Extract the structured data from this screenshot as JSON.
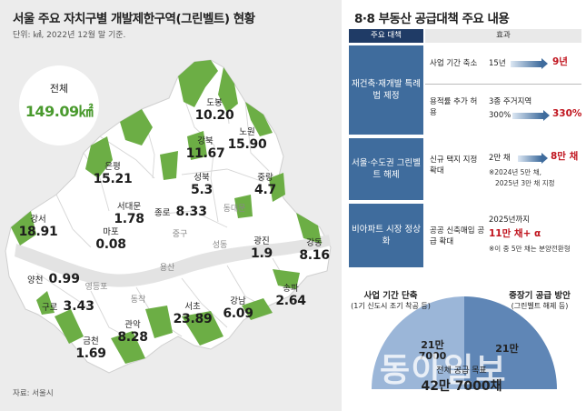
{
  "left": {
    "title": "서울 주요 자치구별 개발제한구역(그린벨트) 현황",
    "unit": "단위: ㎢, 2022년 12월 말 기준.",
    "source": "자료: 서울시",
    "total": {
      "label": "전체",
      "value": "149.09㎢"
    },
    "districts": [
      {
        "name": "도봉",
        "value": "10.20"
      },
      {
        "name": "노원",
        "value": "15.90"
      },
      {
        "name": "강북",
        "value": "11.67"
      },
      {
        "name": "은평",
        "value": "15.21"
      },
      {
        "name": "성북",
        "value": "5.3"
      },
      {
        "name": "중랑",
        "value": "4.7"
      },
      {
        "name": "서대문",
        "value": "1.78"
      },
      {
        "name": "종로",
        "value": "8.33"
      },
      {
        "name": "강서",
        "value": "18.91"
      },
      {
        "name": "마포",
        "value": "0.08"
      },
      {
        "name": "광진",
        "value": "1.9"
      },
      {
        "name": "강동",
        "value": "8.16"
      },
      {
        "name": "양천",
        "value": "0.99"
      },
      {
        "name": "구로",
        "value": "3.43"
      },
      {
        "name": "송파",
        "value": "2.64"
      },
      {
        "name": "강남",
        "value": "6.09"
      },
      {
        "name": "서초",
        "value": "23.89"
      },
      {
        "name": "관악",
        "value": "8.28"
      },
      {
        "name": "금천",
        "value": "1.69"
      }
    ],
    "plain_districts": [
      "동대문",
      "중구",
      "성동",
      "용산",
      "영등포",
      "동작"
    ]
  },
  "right": {
    "title": "8·8 부동산 공급대책 주요 내용",
    "header_policy": "주요 대책",
    "header_effect": "효과",
    "policies": [
      {
        "category": "재건축·재개발 특례법 제정",
        "items": [
          {
            "item": "사업 기간 축소",
            "from": "15년",
            "to": "9년"
          },
          {
            "item": "용적률 추가 허용",
            "from_line1": "3종 주거지역",
            "from": "300%",
            "to": "330%"
          }
        ]
      },
      {
        "category": "서울·수도권 그린벨트 해제",
        "items": [
          {
            "item": "신규 택지 지정 확대",
            "from": "2만 채",
            "to": "8만 채",
            "note_1": "※2024년 5만 채,",
            "note_2": "2025년 3만 채 지정"
          }
        ]
      },
      {
        "category": "비아파트 시장 정상화",
        "items": [
          {
            "item": "공공 신축매입 공급 확대",
            "line1": "2025년까지",
            "value": "11만 채+ α",
            "note": "※이 중 5만 채는 분양전환형"
          }
        ]
      }
    ],
    "pie": {
      "left_label": "사업 기간 단축",
      "left_sub": "(1기 신도시 조기 착공 등)",
      "left_value_1": "21만",
      "left_value_2": "7000",
      "right_label": "중장기 공급 방안",
      "right_sub": "(그린벨트 해제 등)",
      "right_value": "21만",
      "total_label": "전체 공급 목표",
      "total_value": "42만 7000채",
      "colors": {
        "left": "#9bb6d8",
        "right": "#5f86b6"
      }
    },
    "watermark": "동아일보"
  },
  "colors": {
    "greenbelt": "#6cae45",
    "district_fill": "#ffffff",
    "river": "#dcdcdc",
    "navy": "#1f3b66",
    "category": "#3f6c9d",
    "accent": "#c0141e",
    "total_green": "#4a9a2e"
  }
}
